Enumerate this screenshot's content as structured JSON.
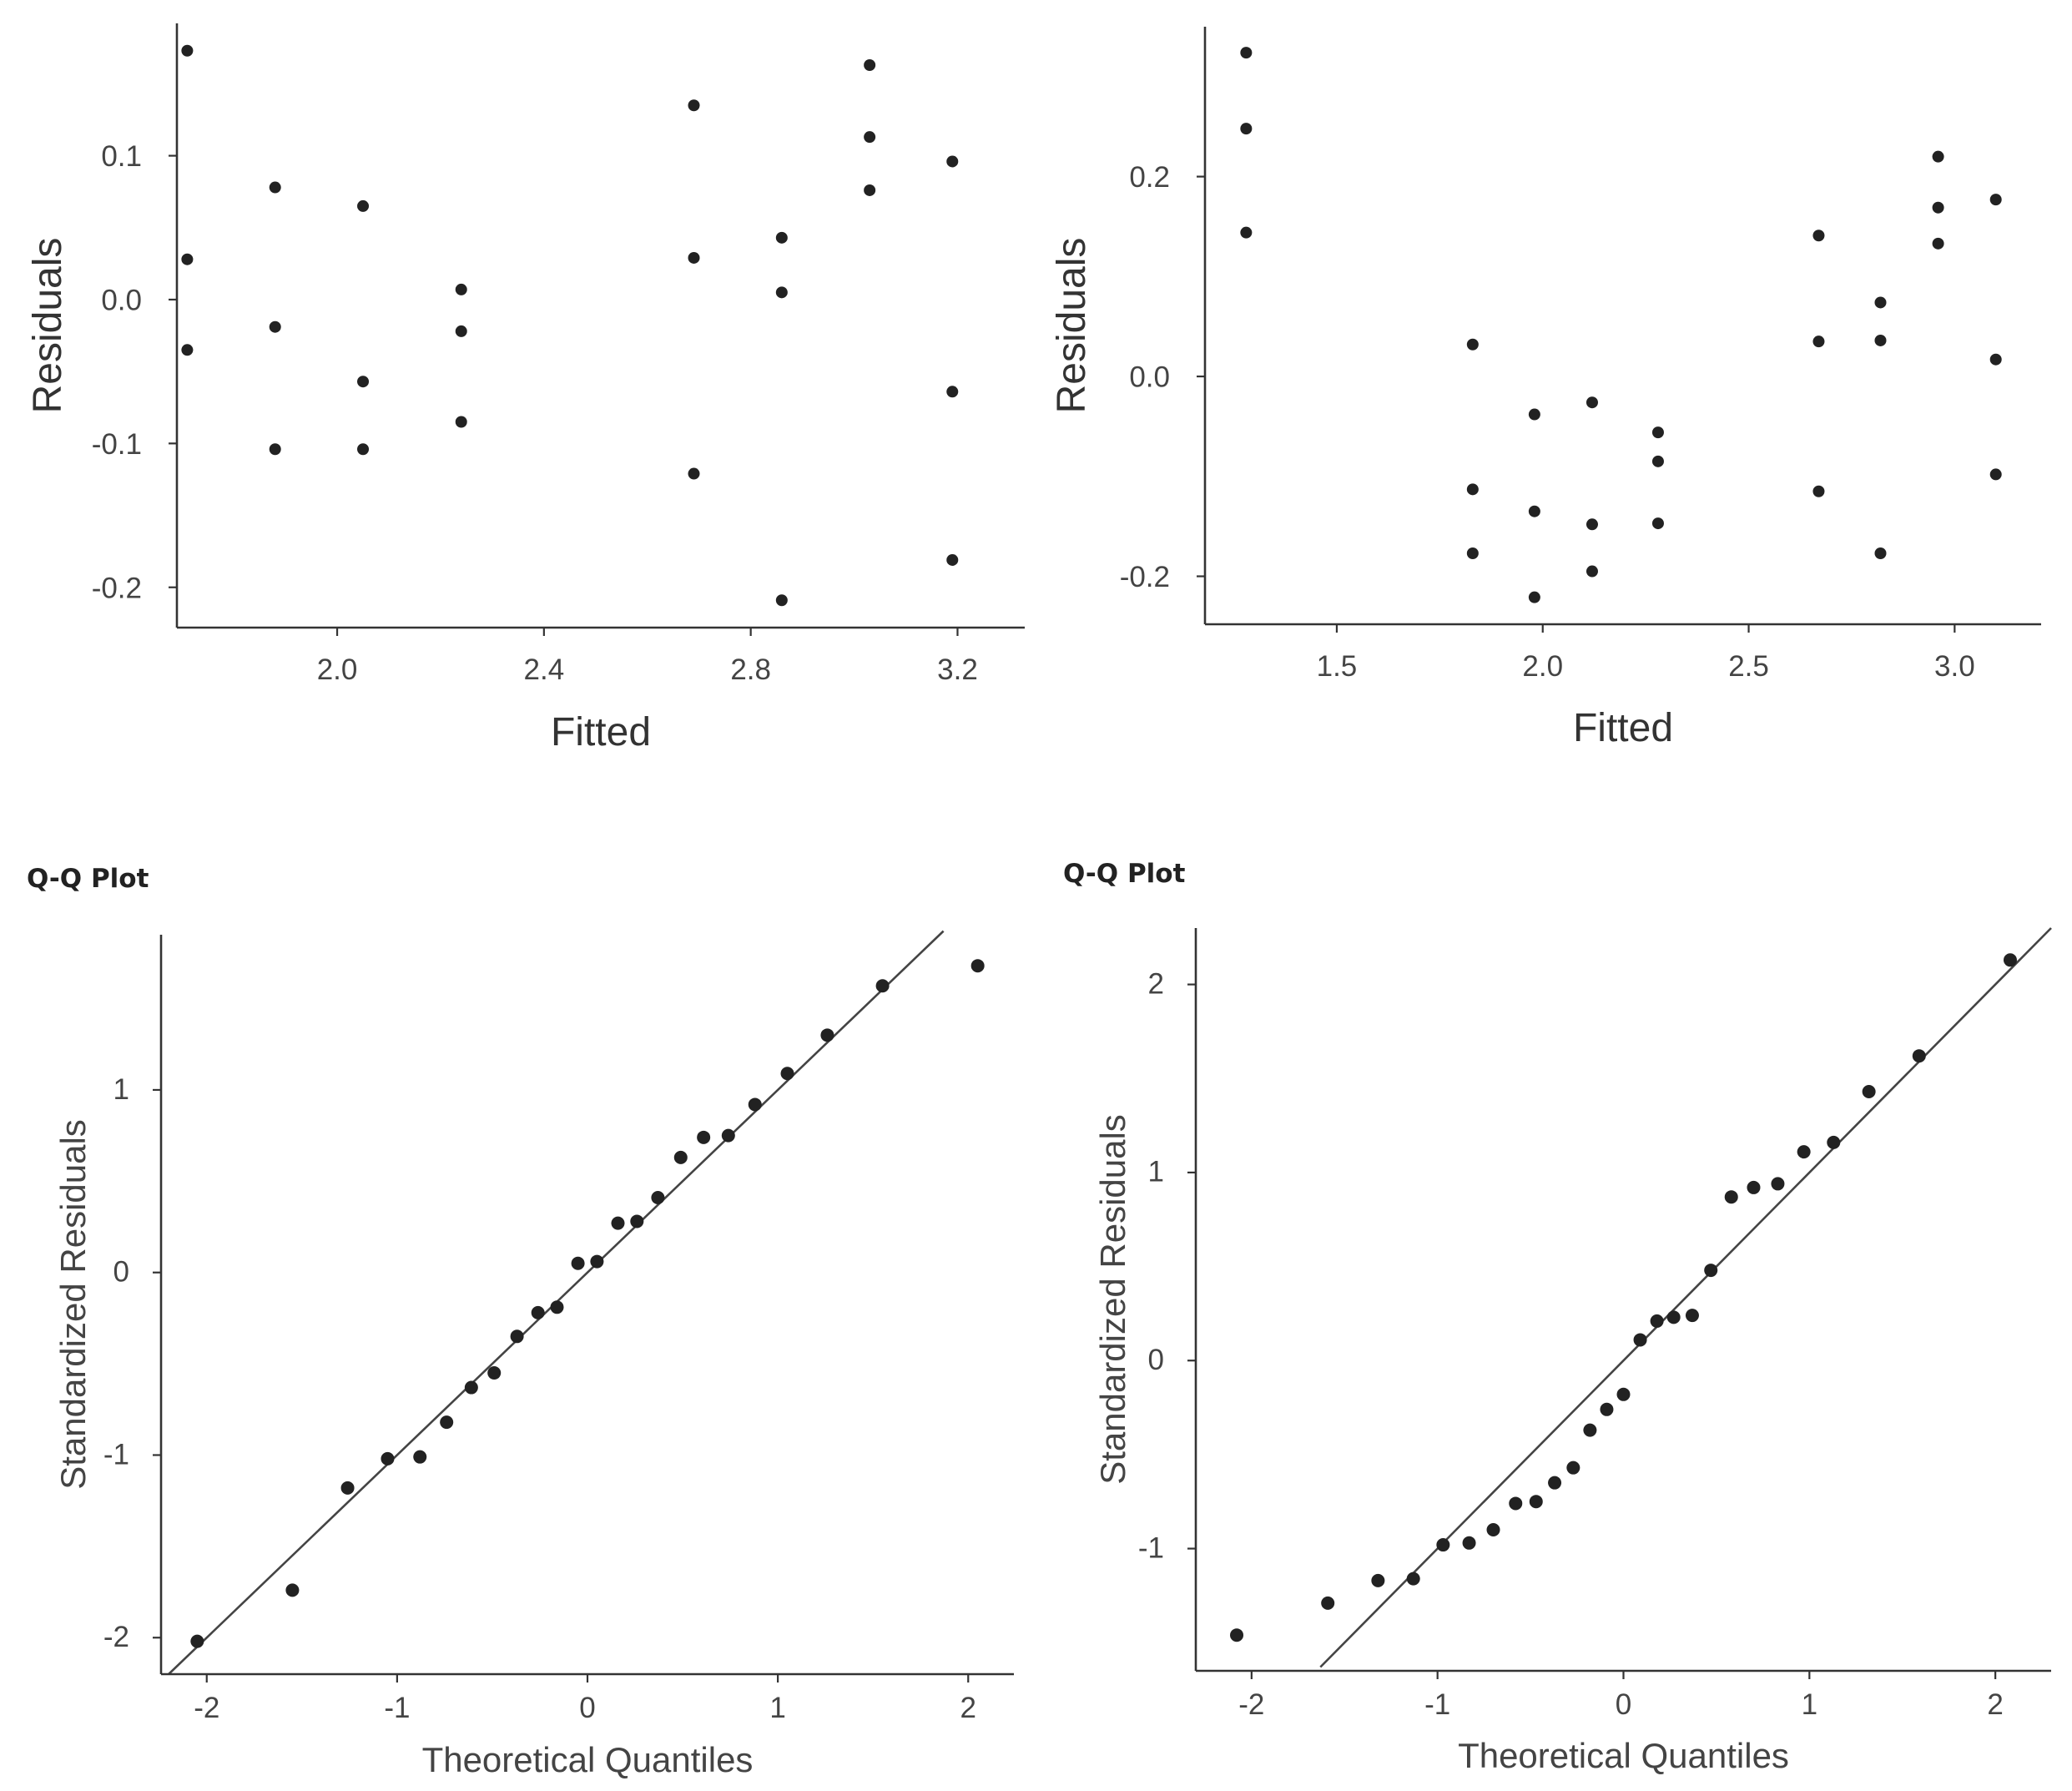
{
  "colors": {
    "point": "#222222",
    "axis": "#333333",
    "line": "#444444",
    "text": "#444444"
  },
  "chart_data": [
    {
      "type": "scatter",
      "title": "",
      "xlabel": "Fitted",
      "ylabel": "Residuals",
      "xlim": [
        1.69,
        3.33
      ],
      "ylim": [
        -0.228,
        0.192
      ],
      "xticks": [
        2.0,
        2.4,
        2.8,
        3.2
      ],
      "xtick_labels": [
        "2.0",
        "2.4",
        "2.8",
        "3.2"
      ],
      "yticks": [
        0.1,
        0.0,
        -0.1,
        -0.2
      ],
      "ytick_labels": [
        "0.1",
        "0.0",
        "-0.1",
        "-0.2"
      ],
      "x": [
        1.71,
        1.71,
        1.71,
        1.88,
        1.88,
        1.88,
        2.05,
        2.05,
        2.05,
        2.24,
        2.24,
        2.24,
        2.69,
        2.69,
        2.69,
        2.86,
        2.86,
        2.86,
        3.03,
        3.03,
        3.03,
        3.19,
        3.19,
        3.19
      ],
      "y": [
        0.173,
        0.028,
        -0.035,
        0.078,
        -0.019,
        -0.104,
        0.065,
        -0.057,
        -0.104,
        0.007,
        -0.022,
        -0.085,
        0.135,
        0.029,
        -0.121,
        0.043,
        0.005,
        -0.209,
        0.163,
        0.113,
        0.076,
        0.096,
        -0.064,
        -0.181
      ]
    },
    {
      "type": "scatter",
      "title": "",
      "xlabel": "Fitted",
      "ylabel": "Residuals",
      "xlim": [
        1.18,
        3.21
      ],
      "ylim": [
        -0.248,
        0.35
      ],
      "xticks": [
        1.5,
        2.0,
        2.5,
        3.0
      ],
      "xtick_labels": [
        "1.5",
        "2.0",
        "2.5",
        "3.0"
      ],
      "yticks": [
        0.2,
        0.0,
        -0.2
      ],
      "ytick_labels": [
        "0.2",
        "0.0",
        "-0.2"
      ],
      "x": [
        1.28,
        1.28,
        1.28,
        1.83,
        1.83,
        1.83,
        1.98,
        1.98,
        1.98,
        2.12,
        2.12,
        2.12,
        2.28,
        2.28,
        2.28,
        2.67,
        2.67,
        2.67,
        2.82,
        2.82,
        2.82,
        2.96,
        2.96,
        2.96,
        3.1,
        3.1,
        3.1
      ],
      "y": [
        0.324,
        0.248,
        0.144,
        0.032,
        -0.113,
        -0.177,
        -0.038,
        -0.135,
        -0.221,
        -0.026,
        -0.148,
        -0.195,
        -0.056,
        -0.085,
        -0.147,
        0.141,
        0.035,
        -0.115,
        0.074,
        0.036,
        -0.177,
        0.22,
        0.169,
        0.133,
        0.177,
        0.017,
        -0.098
      ]
    },
    {
      "type": "scatter",
      "title": "Q-Q Plot",
      "xlabel": "Theoretical Quantiles",
      "ylabel": "Standardized Residuals",
      "xlim": [
        -2.24,
        2.24
      ],
      "ylim": [
        -2.2,
        1.85
      ],
      "xticks": [
        -2,
        -1,
        0,
        1,
        2
      ],
      "xtick_labels": [
        "-2",
        "-1",
        "0",
        "1",
        "2"
      ],
      "yticks": [
        1,
        0,
        -1,
        -2
      ],
      "ytick_labels": [
        "1",
        "0",
        "-1",
        "-2"
      ],
      "reference_line": [
        [
          -2.2,
          -2.2
        ],
        [
          1.87,
          1.87
        ]
      ],
      "x": [
        -2.05,
        -1.55,
        -1.26,
        -1.05,
        -0.88,
        -0.74,
        -0.61,
        -0.49,
        -0.37,
        -0.26,
        -0.16,
        -0.05,
        0.05,
        0.16,
        0.26,
        0.37,
        0.49,
        0.61,
        0.74,
        0.88,
        1.05,
        1.26,
        1.55,
        2.05
      ],
      "y": [
        -2.02,
        -1.74,
        -1.18,
        -1.02,
        -1.01,
        -0.82,
        -0.63,
        -0.55,
        -0.35,
        -0.22,
        -0.19,
        0.05,
        0.06,
        0.27,
        0.28,
        0.41,
        0.63,
        0.74,
        0.75,
        0.92,
        1.09,
        1.3,
        1.57,
        1.68
      ]
    },
    {
      "type": "scatter",
      "title": "Q-Q Plot",
      "xlabel": "Theoretical Quantiles",
      "ylabel": "Standardized Residuals",
      "xlim": [
        -2.3,
        2.3
      ],
      "ylim": [
        -1.65,
        2.3
      ],
      "xticks": [
        -2,
        -1,
        0,
        1,
        2
      ],
      "xtick_labels": [
        "-2",
        "-1",
        "0",
        "1",
        "2"
      ],
      "yticks": [
        2,
        1,
        0,
        -1
      ],
      "ytick_labels": [
        "2",
        "1",
        "0",
        "-1"
      ],
      "reference_line": [
        [
          -1.63,
          -1.63
        ],
        [
          2.3,
          2.3
        ]
      ],
      "x": [
        -2.08,
        -1.59,
        -1.32,
        -1.13,
        -0.97,
        -0.83,
        -0.7,
        -0.58,
        -0.47,
        -0.37,
        -0.27,
        -0.18,
        -0.09,
        0.0,
        0.09,
        0.18,
        0.27,
        0.37,
        0.47,
        0.58,
        0.7,
        0.83,
        0.97,
        1.13,
        1.32,
        1.59,
        2.08
      ],
      "y": [
        -1.46,
        -1.29,
        -1.17,
        -1.16,
        -0.98,
        -0.97,
        -0.9,
        -0.76,
        -0.75,
        -0.65,
        -0.57,
        -0.37,
        -0.26,
        -0.18,
        0.11,
        0.21,
        0.23,
        0.24,
        0.48,
        0.87,
        0.92,
        0.94,
        1.11,
        1.16,
        1.43,
        1.62,
        2.13
      ]
    }
  ]
}
